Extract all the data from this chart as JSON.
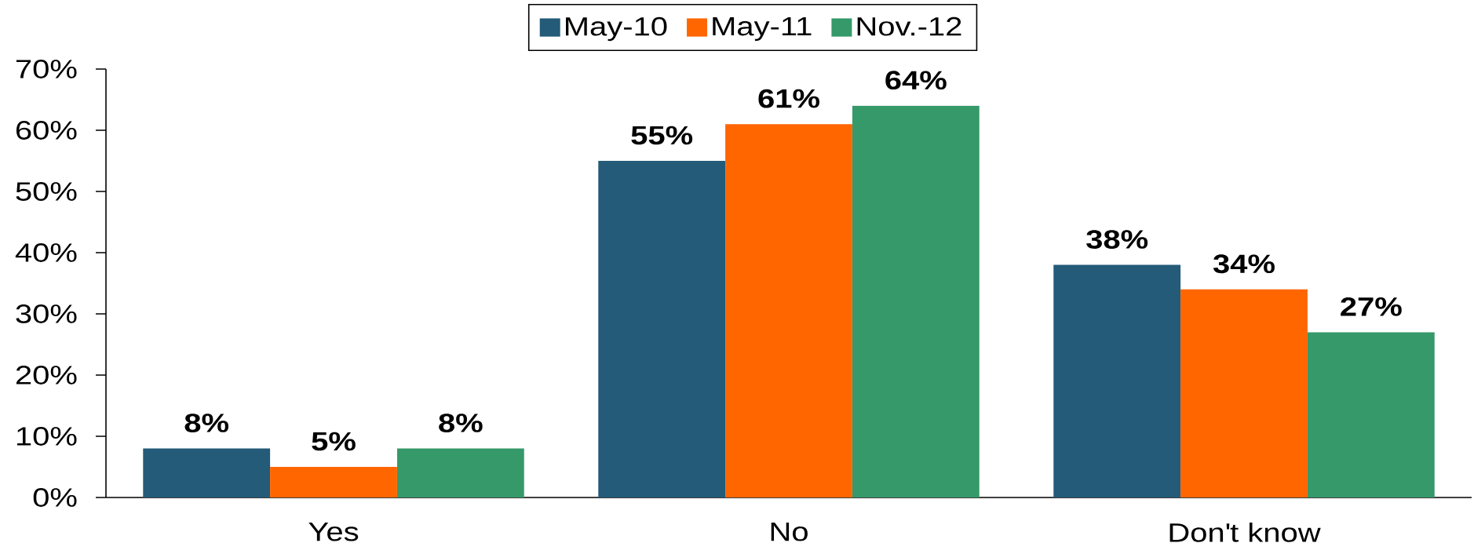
{
  "chart_data": {
    "type": "bar",
    "categories": [
      "Yes",
      "No",
      "Don't know"
    ],
    "series": [
      {
        "name": "May-10",
        "color": "#235b79",
        "values": [
          8,
          55,
          38
        ],
        "value_labels": [
          "8%",
          "55%",
          "38%"
        ]
      },
      {
        "name": "May-11",
        "color": "#ff6600",
        "values": [
          5,
          61,
          34
        ],
        "value_labels": [
          "5%",
          "61%",
          "34%"
        ]
      },
      {
        "name": "Nov.-12",
        "color": "#35996a",
        "values": [
          8,
          64,
          27
        ],
        "value_labels": [
          "8%",
          "64%",
          "27%"
        ]
      }
    ],
    "ylim": [
      0,
      70
    ],
    "yticks": [
      {
        "value": 0,
        "label": "0%"
      },
      {
        "value": 10,
        "label": "10%"
      },
      {
        "value": 20,
        "label": "20%"
      },
      {
        "value": 30,
        "label": "30%"
      },
      {
        "value": 40,
        "label": "40%"
      },
      {
        "value": 50,
        "label": "50%"
      },
      {
        "value": 60,
        "label": "60%"
      },
      {
        "value": 70,
        "label": "70%"
      }
    ],
    "legend": "top",
    "grid": false
  }
}
